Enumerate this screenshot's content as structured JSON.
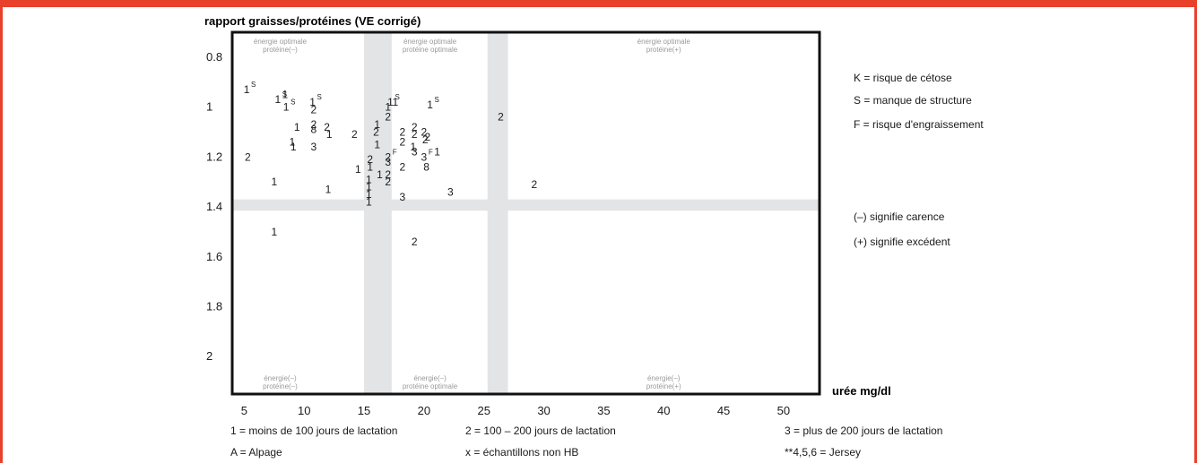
{
  "chart_data": {
    "type": "scatter",
    "title": "rapport graisses/protéines (VE corrigé)",
    "xlabel": "urée mg/dl",
    "xlim": [
      4,
      53
    ],
    "ylim": [
      0.7,
      2.15
    ],
    "y_inverted": true,
    "xticks": [
      {
        "value": 5,
        "label": "5"
      },
      {
        "value": 10,
        "label": "10"
      },
      {
        "value": 15,
        "label": "15"
      },
      {
        "value": 20,
        "label": "20"
      },
      {
        "value": 25,
        "label": "25"
      },
      {
        "value": 30,
        "label": "30"
      },
      {
        "value": 35,
        "label": "35"
      },
      {
        "value": 40,
        "label": "40"
      },
      {
        "value": 45,
        "label": "45"
      },
      {
        "value": 50,
        "label": "50"
      }
    ],
    "yticks": [
      {
        "value": 0.8,
        "label": "0.8"
      },
      {
        "value": 1.0,
        "label": "1"
      },
      {
        "value": 1.2,
        "label": "1.2"
      },
      {
        "value": 1.4,
        "label": "1.4"
      },
      {
        "value": 1.6,
        "label": "1.6"
      },
      {
        "value": 1.8,
        "label": "1.8"
      },
      {
        "value": 2.0,
        "label": "2"
      }
    ],
    "bands": {
      "vertical": [
        [
          15,
          17.3
        ],
        [
          25.3,
          27
        ]
      ],
      "horizontal": [
        [
          1.37,
          1.415
        ]
      ],
      "color": "#e2e4e5"
    },
    "zones": [
      {
        "x": 8,
        "y_pos": "top",
        "lines": [
          "énergie optimale",
          "protéine(–)"
        ]
      },
      {
        "x": 20.5,
        "y_pos": "top",
        "lines": [
          "énergie optimale",
          "protéine optimale"
        ]
      },
      {
        "x": 40,
        "y_pos": "top",
        "lines": [
          "énergie optimale",
          "protéine(+)"
        ]
      },
      {
        "x": 8,
        "y_pos": "bottom",
        "lines": [
          "énergie(–)",
          "protéine(–)"
        ]
      },
      {
        "x": 20.5,
        "y_pos": "bottom",
        "lines": [
          "énergie(–)",
          "protéine optimale"
        ]
      },
      {
        "x": 40,
        "y_pos": "bottom",
        "lines": [
          "énergie(–)",
          "protéine(+)"
        ]
      }
    ],
    "points": [
      {
        "x": 5.2,
        "y": 0.93,
        "label": "1",
        "sup": "S"
      },
      {
        "x": 7.8,
        "y": 0.97,
        "label": "1",
        "sup": "S"
      },
      {
        "x": 8.4,
        "y": 0.95,
        "label": "1",
        "sup": ""
      },
      {
        "x": 8.5,
        "y": 1.0,
        "label": "1",
        "sup": "S"
      },
      {
        "x": 10.7,
        "y": 0.98,
        "label": "1",
        "sup": "S"
      },
      {
        "x": 10.8,
        "y": 1.01,
        "label": "2",
        "sup": ""
      },
      {
        "x": 10.8,
        "y": 1.07,
        "label": "2",
        "sup": ""
      },
      {
        "x": 10.8,
        "y": 1.09,
        "label": "8",
        "sup": ""
      },
      {
        "x": 9.4,
        "y": 1.08,
        "label": "1",
        "sup": ""
      },
      {
        "x": 11.9,
        "y": 1.08,
        "label": "2",
        "sup": ""
      },
      {
        "x": 12.1,
        "y": 1.11,
        "label": "1",
        "sup": ""
      },
      {
        "x": 9.0,
        "y": 1.14,
        "label": "1",
        "sup": ""
      },
      {
        "x": 9.1,
        "y": 1.16,
        "label": "1",
        "sup": ""
      },
      {
        "x": 10.8,
        "y": 1.16,
        "label": "3",
        "sup": ""
      },
      {
        "x": 14.2,
        "y": 1.11,
        "label": "2",
        "sup": ""
      },
      {
        "x": 5.3,
        "y": 1.2,
        "label": "2",
        "sup": ""
      },
      {
        "x": 7.5,
        "y": 1.3,
        "label": "1",
        "sup": ""
      },
      {
        "x": 12.0,
        "y": 1.33,
        "label": "1",
        "sup": ""
      },
      {
        "x": 17.2,
        "y": 0.98,
        "label": "1",
        "sup": "S"
      },
      {
        "x": 17.6,
        "y": 0.98,
        "label": "1",
        "sup": ""
      },
      {
        "x": 17.0,
        "y": 1.0,
        "label": "1",
        "sup": ""
      },
      {
        "x": 17.0,
        "y": 1.04,
        "label": "2",
        "sup": ""
      },
      {
        "x": 16.1,
        "y": 1.07,
        "label": "1",
        "sup": ""
      },
      {
        "x": 16.0,
        "y": 1.1,
        "label": "2",
        "sup": ""
      },
      {
        "x": 16.1,
        "y": 1.15,
        "label": "1",
        "sup": ""
      },
      {
        "x": 18.2,
        "y": 1.1,
        "label": "2",
        "sup": ""
      },
      {
        "x": 19.2,
        "y": 1.08,
        "label": "2",
        "sup": ""
      },
      {
        "x": 19.2,
        "y": 1.11,
        "label": "2",
        "sup": ""
      },
      {
        "x": 18.2,
        "y": 1.14,
        "label": "2",
        "sup": ""
      },
      {
        "x": 20.0,
        "y": 1.1,
        "label": "2",
        "sup": ""
      },
      {
        "x": 20.1,
        "y": 1.13,
        "label": "2",
        "sup": ""
      },
      {
        "x": 20.3,
        "y": 1.12,
        "label": "2",
        "sup": ""
      },
      {
        "x": 19.1,
        "y": 1.16,
        "label": "1",
        "sup": ""
      },
      {
        "x": 19.2,
        "y": 1.18,
        "label": "3",
        "sup": ""
      },
      {
        "x": 20.5,
        "y": 0.99,
        "label": "1",
        "sup": "S"
      },
      {
        "x": 21.1,
        "y": 1.18,
        "label": "1",
        "sup": ""
      },
      {
        "x": 20.0,
        "y": 1.2,
        "label": "3",
        "sup": "F"
      },
      {
        "x": 20.2,
        "y": 1.24,
        "label": "8",
        "sup": ""
      },
      {
        "x": 17.0,
        "y": 1.2,
        "label": "2",
        "sup": "F"
      },
      {
        "x": 17.0,
        "y": 1.22,
        "label": "3",
        "sup": ""
      },
      {
        "x": 15.5,
        "y": 1.21,
        "label": "2",
        "sup": ""
      },
      {
        "x": 15.5,
        "y": 1.24,
        "label": "1",
        "sup": ""
      },
      {
        "x": 14.5,
        "y": 1.25,
        "label": "1",
        "sup": ""
      },
      {
        "x": 16.3,
        "y": 1.27,
        "label": "1",
        "sup": ""
      },
      {
        "x": 17.0,
        "y": 1.27,
        "label": "2",
        "sup": ""
      },
      {
        "x": 17.0,
        "y": 1.3,
        "label": "2",
        "sup": ""
      },
      {
        "x": 18.2,
        "y": 1.24,
        "label": "2",
        "sup": ""
      },
      {
        "x": 15.4,
        "y": 1.29,
        "label": "1",
        "sup": ""
      },
      {
        "x": 15.4,
        "y": 1.32,
        "label": "1",
        "sup": ""
      },
      {
        "x": 15.4,
        "y": 1.35,
        "label": "1",
        "sup": ""
      },
      {
        "x": 15.4,
        "y": 1.38,
        "label": "1",
        "sup": ""
      },
      {
        "x": 18.2,
        "y": 1.36,
        "label": "3",
        "sup": ""
      },
      {
        "x": 22.2,
        "y": 1.34,
        "label": "3",
        "sup": ""
      },
      {
        "x": 26.4,
        "y": 1.04,
        "label": "2",
        "sup": ""
      },
      {
        "x": 29.2,
        "y": 1.31,
        "label": "2",
        "sup": ""
      },
      {
        "x": 7.5,
        "y": 1.5,
        "label": "1",
        "sup": ""
      },
      {
        "x": 19.2,
        "y": 1.54,
        "label": "2",
        "sup": ""
      }
    ]
  },
  "legend_right": [
    {
      "key": "K",
      "text": "K = risque de cétose"
    },
    {
      "key": "S",
      "text": "S = manque de structure"
    },
    {
      "key": "F",
      "text": "F = risque d'engraissement"
    },
    {
      "key": "minus",
      "text": "(–) signifie carence"
    },
    {
      "key": "plus",
      "text": "(+) signifie excédent"
    }
  ],
  "legend_bottom": [
    {
      "key": "1",
      "text": "1 = moins de 100 jours de lactation"
    },
    {
      "key": "2",
      "text": "2 = 100 – 200 jours de lactation"
    },
    {
      "key": "3",
      "text": "3 = plus de 200 jours de lactation"
    },
    {
      "key": "A",
      "text": "A = Alpage"
    },
    {
      "key": "x",
      "text": "x = échantillons non HB"
    },
    {
      "key": "jersey",
      "text": "**4,5,6 = Jersey"
    }
  ]
}
